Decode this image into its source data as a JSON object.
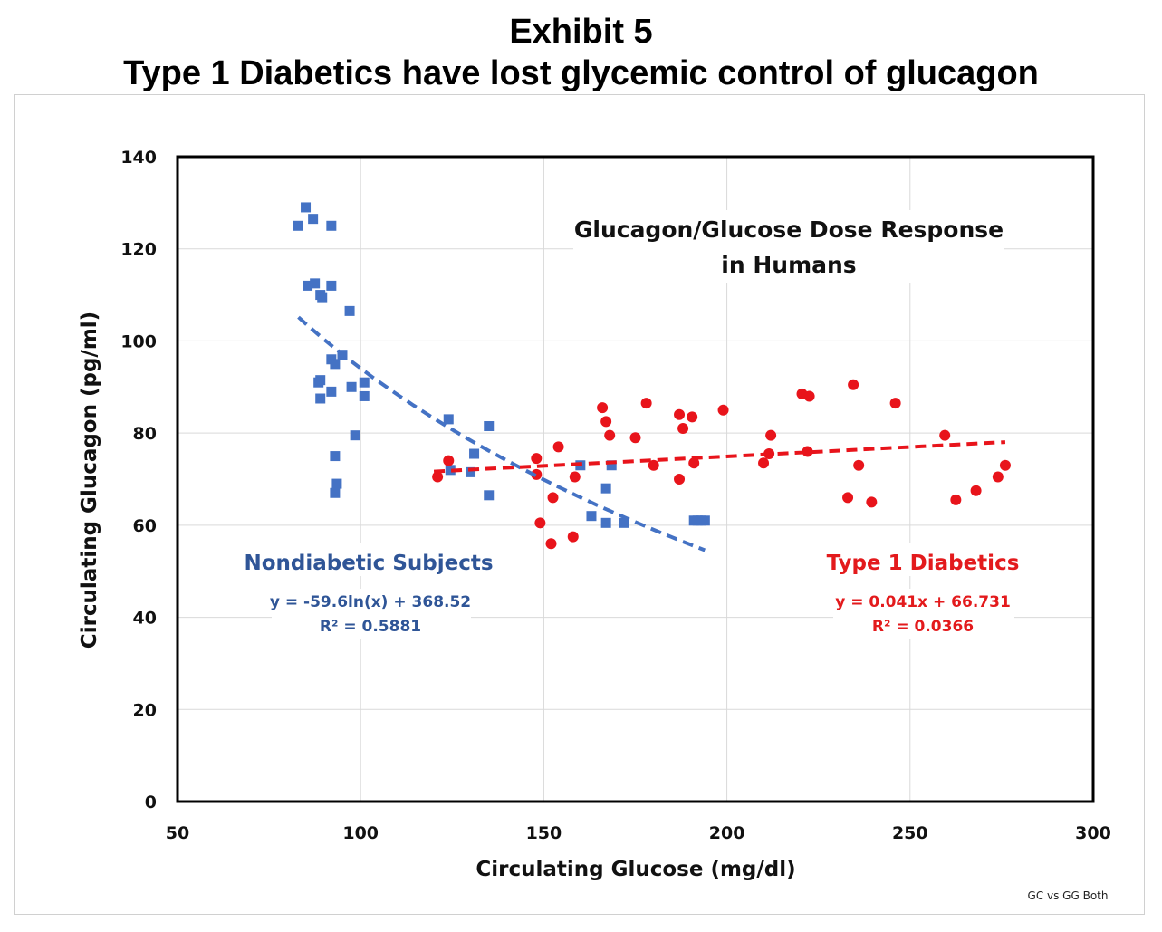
{
  "header": {
    "line1": "Exhibit 5",
    "line2": "Type 1 Diabetics have lost glycemic control of glucagon"
  },
  "footnote": "GC vs GG Both",
  "colors": {
    "nondiabetic": "#4472C4",
    "nondiabetic_text": "#2F5597",
    "type1": "#E8141B",
    "type1_text": "#E31A1C",
    "grid": "#d9d9d9",
    "axis": "#000000"
  },
  "chart_data": {
    "type": "scatter",
    "title": "Glucagon/Glucose Dose Response in Humans",
    "title_lines": [
      "Glucagon/Glucose Dose Response",
      "in Humans"
    ],
    "xlabel": "Circulating Glucose (mg/dl)",
    "ylabel": "Circulating Glucagon (pg/ml)",
    "xlim": [
      50,
      300
    ],
    "ylim": [
      0,
      140
    ],
    "xticks": [
      50,
      100,
      150,
      200,
      250,
      300
    ],
    "yticks": [
      0,
      20,
      40,
      60,
      80,
      100,
      120,
      140
    ],
    "grid": true,
    "series": [
      {
        "name": "Nondiabetic Subjects",
        "marker": "square",
        "trendline": {
          "type": "log",
          "a": -59.6,
          "b": 368.52,
          "x_range": [
            83,
            194
          ]
        },
        "equation": "y = -59.6ln(x) + 368.52",
        "r2": "R² = 0.5881",
        "points": [
          [
            83,
            125
          ],
          [
            85,
            129
          ],
          [
            87,
            126.5
          ],
          [
            85.5,
            112
          ],
          [
            87.5,
            112.5
          ],
          [
            89,
            110
          ],
          [
            92,
            125
          ],
          [
            92,
            112
          ],
          [
            89.5,
            109.5
          ],
          [
            97,
            106.5
          ],
          [
            92,
            96
          ],
          [
            95,
            97
          ],
          [
            93,
            95
          ],
          [
            88.5,
            91
          ],
          [
            89,
            91.5
          ],
          [
            101,
            91
          ],
          [
            97.5,
            90
          ],
          [
            89,
            87.5
          ],
          [
            92,
            89
          ],
          [
            101,
            88
          ],
          [
            98.5,
            79.5
          ],
          [
            93,
            75
          ],
          [
            93.5,
            69
          ],
          [
            93,
            67
          ],
          [
            124,
            83
          ],
          [
            124.5,
            72
          ],
          [
            131,
            75.5
          ],
          [
            130,
            71.5
          ],
          [
            135,
            81.5
          ],
          [
            135,
            66.5
          ],
          [
            160,
            73
          ],
          [
            163,
            62
          ],
          [
            167,
            68
          ],
          [
            167,
            60.5
          ],
          [
            168.5,
            73
          ],
          [
            172,
            60.5
          ],
          [
            191,
            61
          ],
          [
            192,
            61
          ],
          [
            193,
            61
          ],
          [
            194,
            61
          ]
        ]
      },
      {
        "name": "Type 1 Diabetics",
        "marker": "circle",
        "trendline": {
          "type": "linear",
          "m": 0.041,
          "c": 66.731,
          "x_range": [
            120,
            276
          ]
        },
        "equation": "y = 0.041x + 66.731",
        "r2": "R² = 0.0366",
        "points": [
          [
            121,
            70.5
          ],
          [
            124,
            74
          ],
          [
            148,
            74.5
          ],
          [
            148,
            71
          ],
          [
            149,
            60.5
          ],
          [
            152,
            56
          ],
          [
            152.5,
            66
          ],
          [
            154,
            77
          ],
          [
            158,
            57.5
          ],
          [
            158.5,
            70.5
          ],
          [
            166,
            85.5
          ],
          [
            167,
            82.5
          ],
          [
            168,
            79.5
          ],
          [
            175,
            79
          ],
          [
            178,
            86.5
          ],
          [
            180,
            73
          ],
          [
            187,
            84
          ],
          [
            187,
            70
          ],
          [
            188,
            81
          ],
          [
            190.5,
            83.5
          ],
          [
            191,
            73.5
          ],
          [
            199,
            85
          ],
          [
            210,
            73.5
          ],
          [
            211.5,
            75.5
          ],
          [
            212,
            79.5
          ],
          [
            220.5,
            88.5
          ],
          [
            222,
            76
          ],
          [
            222.5,
            88
          ],
          [
            233,
            66
          ],
          [
            234.5,
            90.5
          ],
          [
            236,
            73
          ],
          [
            239.5,
            65
          ],
          [
            246,
            86.5
          ],
          [
            259.5,
            79.5
          ],
          [
            262.5,
            65.5
          ],
          [
            268,
            67.5
          ],
          [
            274,
            70.5
          ],
          [
            276,
            73
          ]
        ]
      }
    ]
  }
}
